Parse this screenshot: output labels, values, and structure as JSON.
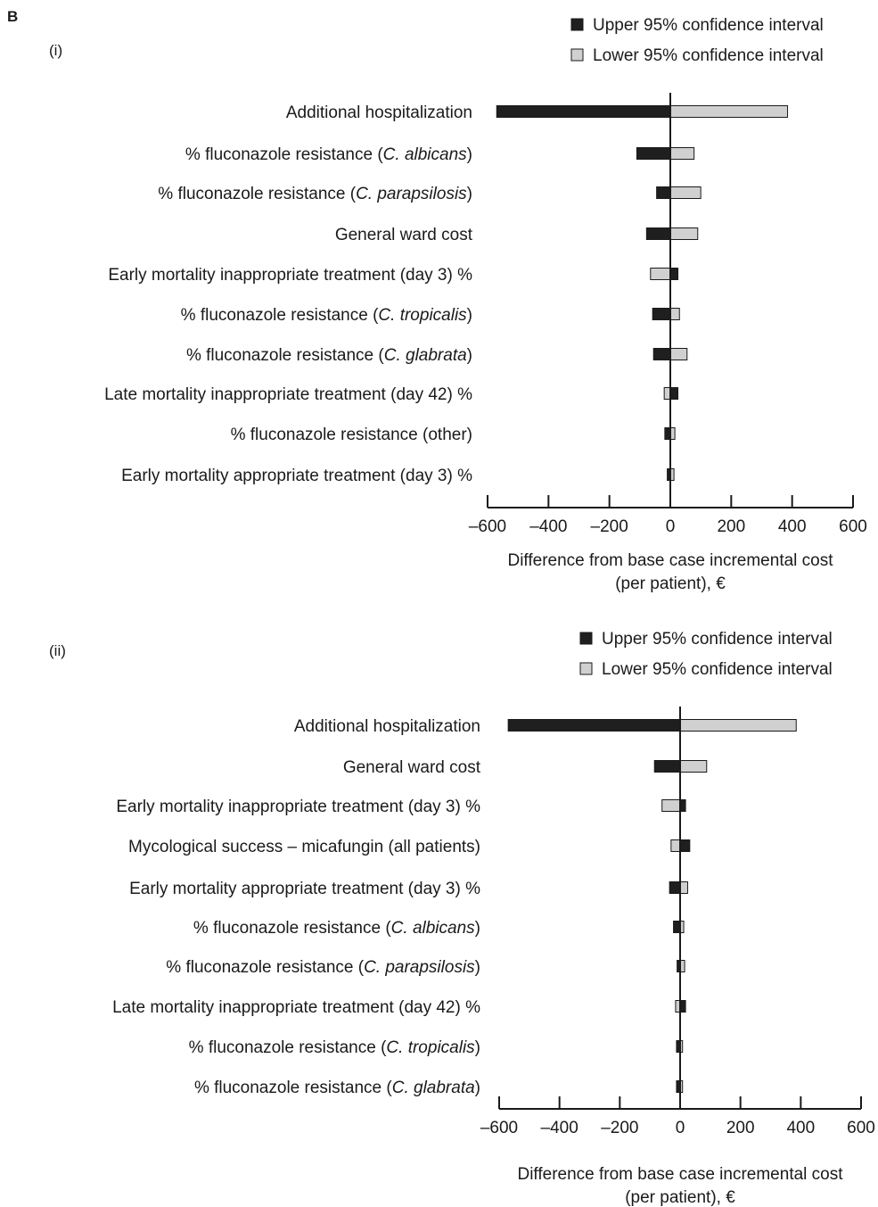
{
  "figure_label": "B",
  "chart_data": [
    {
      "type": "tornado",
      "panel": "(i)",
      "legend": [
        "Upper 95% confidence interval",
        "Lower 95% confidence interval"
      ],
      "legend_placement": "top-right",
      "colors": {
        "upper": "#1f1f1f",
        "lower": "#d0d0d0"
      },
      "xlabel": [
        "Difference from base case incremental cost",
        "(per patient), €"
      ],
      "xlim": [
        -600,
        600
      ],
      "xticks": [
        "–600",
        "–400",
        "–200",
        "0",
        "200",
        "400",
        "600"
      ],
      "xtick_values": [
        -600,
        -400,
        -200,
        0,
        200,
        400,
        600
      ],
      "categories": [
        [
          {
            "t": "Additional hospitalization"
          }
        ],
        [
          {
            "t": "% fluconazole resistance ("
          },
          {
            "t": "C. albicans",
            "i": true
          },
          {
            "t": ")"
          }
        ],
        [
          {
            "t": "% fluconazole resistance ("
          },
          {
            "t": "C. parapsilosis",
            "i": true
          },
          {
            "t": ")"
          }
        ],
        [
          {
            "t": "General ward cost"
          }
        ],
        [
          {
            "t": "Early mortality inappropriate treatment (day 3) %"
          }
        ],
        [
          {
            "t": "% fluconazole resistance ("
          },
          {
            "t": "C. tropicalis",
            "i": true
          },
          {
            "t": ")"
          }
        ],
        [
          {
            "t": "% fluconazole resistance ("
          },
          {
            "t": "C. glabrata",
            "i": true
          },
          {
            "t": ")"
          }
        ],
        [
          {
            "t": "Late mortality inappropriate treatment (day 42) %"
          }
        ],
        [
          {
            "t": "% fluconazole resistance (other)"
          }
        ],
        [
          {
            "t": "Early mortality appropriate treatment (day 3) %"
          }
        ]
      ],
      "series": [
        {
          "name": "Upper 95% confidence interval",
          "values": [
            -570,
            -110,
            -45,
            -78,
            25,
            -58,
            -55,
            25,
            -18,
            -10
          ]
        },
        {
          "name": "Lower 95% confidence interval",
          "values": [
            385,
            78,
            100,
            90,
            -65,
            30,
            55,
            -20,
            15,
            12
          ]
        }
      ]
    },
    {
      "type": "tornado",
      "panel": "(ii)",
      "legend": [
        "Upper 95% confidence interval",
        "Lower 95% confidence interval"
      ],
      "legend_placement": "top-right",
      "colors": {
        "upper": "#1f1f1f",
        "lower": "#d0d0d0"
      },
      "xlabel": [
        "Difference from base case incremental cost",
        "(per patient), €"
      ],
      "xlim": [
        -600,
        600
      ],
      "xticks": [
        "–600",
        "–400",
        "–200",
        "0",
        "200",
        "400",
        "600"
      ],
      "xtick_values": [
        -600,
        -400,
        -200,
        0,
        200,
        400,
        600
      ],
      "categories": [
        [
          {
            "t": "Additional hospitalization"
          }
        ],
        [
          {
            "t": "General ward cost"
          }
        ],
        [
          {
            "t": "Early mortality inappropriate treatment (day 3) %"
          }
        ],
        [
          {
            "t": "Mycological success – micafungin (all patients)"
          }
        ],
        [
          {
            "t": "Early mortality appropriate treatment (day 3) %"
          }
        ],
        [
          {
            "t": "% fluconazole resistance ("
          },
          {
            "t": "C. albicans",
            "i": true
          },
          {
            "t": ")"
          }
        ],
        [
          {
            "t": "% fluconazole resistance ("
          },
          {
            "t": "C. parapsilosis",
            "i": true
          },
          {
            "t": ")"
          }
        ],
        [
          {
            "t": "Late mortality inappropriate treatment (day 42) %"
          }
        ],
        [
          {
            "t": "% fluconazole resistance ("
          },
          {
            "t": "C. tropicalis",
            "i": true
          },
          {
            "t": ")"
          }
        ],
        [
          {
            "t": "% fluconazole resistance ("
          },
          {
            "t": "C. glabrata",
            "i": true
          },
          {
            "t": ")"
          }
        ]
      ],
      "series": [
        {
          "name": "Upper 95% confidence interval",
          "values": [
            -570,
            -85,
            18,
            32,
            -35,
            -22,
            -10,
            18,
            -12,
            -12
          ]
        },
        {
          "name": "Lower 95% confidence interval",
          "values": [
            385,
            88,
            -60,
            -30,
            25,
            12,
            15,
            -15,
            8,
            8
          ]
        }
      ]
    }
  ]
}
